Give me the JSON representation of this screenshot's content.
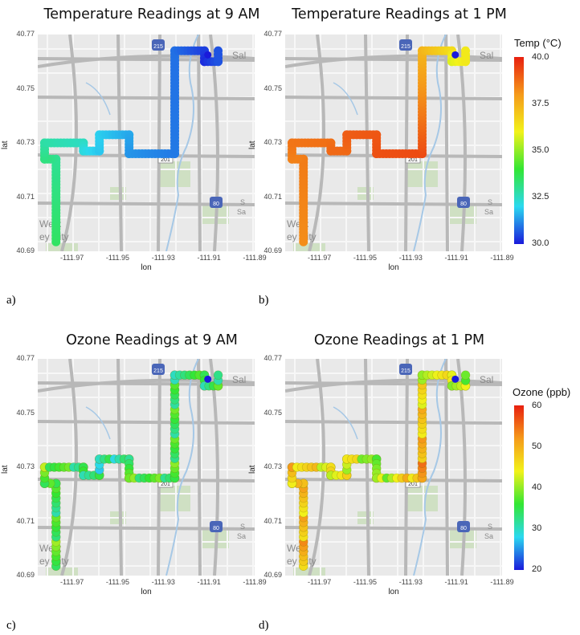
{
  "panels": [
    {
      "id": "a",
      "title": "Temperature Readings at 9 AM",
      "caption": "a)",
      "variable": "temp"
    },
    {
      "id": "b",
      "title": "Temperature Readings at 1 PM",
      "caption": "b)",
      "variable": "temp"
    },
    {
      "id": "c",
      "title": "Ozone Readings at 9 AM",
      "caption": "c)",
      "variable": "ozone"
    },
    {
      "id": "d",
      "title": "Ozone Readings at 1 PM",
      "caption": "d)",
      "variable": "ozone"
    }
  ],
  "axes": {
    "xlabel": "lon",
    "ylabel": "lat",
    "xticks": [
      "-111.97",
      "-111.95",
      "-111.93",
      "-111.91",
      "-111.89"
    ],
    "yticks": [
      "40.77",
      "40.75",
      "40.73",
      "40.71",
      "40.69"
    ],
    "xlim": [
      -111.985,
      -111.89
    ],
    "ylim": [
      40.69,
      40.77
    ]
  },
  "map_labels": {
    "route_215": "215",
    "route_201": "201",
    "route_80": "80",
    "place_west": "West",
    "place_valley": "ey City",
    "place_salt": "Sal",
    "place_s": "S",
    "place_sa": "Sa"
  },
  "legends": {
    "temp": {
      "title": "Temp (°C)",
      "ticks": [
        "40.0",
        "37.5",
        "35.0",
        "32.5",
        "30.0"
      ],
      "range": [
        30,
        40
      ]
    },
    "ozone": {
      "title": "Ozone (ppb)",
      "ticks": [
        "60",
        "50",
        "40",
        "30",
        "20"
      ],
      "range": [
        20,
        60
      ]
    }
  },
  "colors": {
    "scale": [
      "#1a1adb",
      "#2bd9f0",
      "#33e633",
      "#f2f21a",
      "#f59a1a",
      "#e8200f"
    ]
  },
  "route": [
    [
      -111.977,
      40.6935
    ],
    [
      -111.977,
      40.724
    ],
    [
      -111.982,
      40.724
    ],
    [
      -111.982,
      40.73
    ],
    [
      -111.965,
      40.73
    ],
    [
      -111.965,
      40.727
    ],
    [
      -111.958,
      40.727
    ],
    [
      -111.958,
      40.733
    ],
    [
      -111.945,
      40.733
    ],
    [
      -111.945,
      40.726
    ],
    [
      -111.925,
      40.726
    ],
    [
      -111.925,
      40.764
    ],
    [
      -111.912,
      40.764
    ],
    [
      -111.912,
      40.76
    ],
    [
      -111.906,
      40.76
    ],
    [
      -111.906,
      40.764
    ]
  ],
  "chart_data": [
    {
      "type": "scatter",
      "panel": "a",
      "title": "Temperature Readings at 9 AM",
      "xlabel": "lon",
      "ylabel": "lat",
      "color_variable": "Temp (°C)",
      "values_by_segment": [
        33.5,
        33.0,
        33.2,
        32.8,
        32.5,
        32.2,
        31.8,
        31.9,
        31.5,
        31.3,
        31.0,
        30.9,
        30.4,
        30.2,
        30.6
      ]
    },
    {
      "type": "scatter",
      "panel": "b",
      "title": "Temperature Readings at 1 PM",
      "xlabel": "lon",
      "ylabel": "lat",
      "color_variable": "Temp (°C)",
      "values_by_segment": [
        38.2,
        38.5,
        38.4,
        38.6,
        38.7,
        38.8,
        38.8,
        39.0,
        39.1,
        39.2,
        39.3,
        37.4,
        36.5,
        35.8,
        36.2
      ]
    },
    {
      "type": "scatter",
      "panel": "c",
      "title": "Ozone Readings at 9 AM",
      "xlabel": "lon",
      "ylabel": "lat",
      "color_variable": "Ozone (ppb)",
      "values_by_segment": [
        38,
        33,
        36,
        38,
        34,
        33,
        32,
        30,
        35,
        36,
        36,
        34,
        33,
        32,
        34
      ]
    },
    {
      "type": "scatter",
      "panel": "d",
      "title": "Ozone Readings at 1 PM",
      "xlabel": "lon",
      "ylabel": "lat",
      "color_variable": "Ozone (ppb)",
      "values_by_segment": [
        50,
        47,
        46,
        48,
        45,
        44,
        44,
        45,
        40,
        38,
        52,
        44,
        42,
        41,
        40
      ]
    }
  ]
}
